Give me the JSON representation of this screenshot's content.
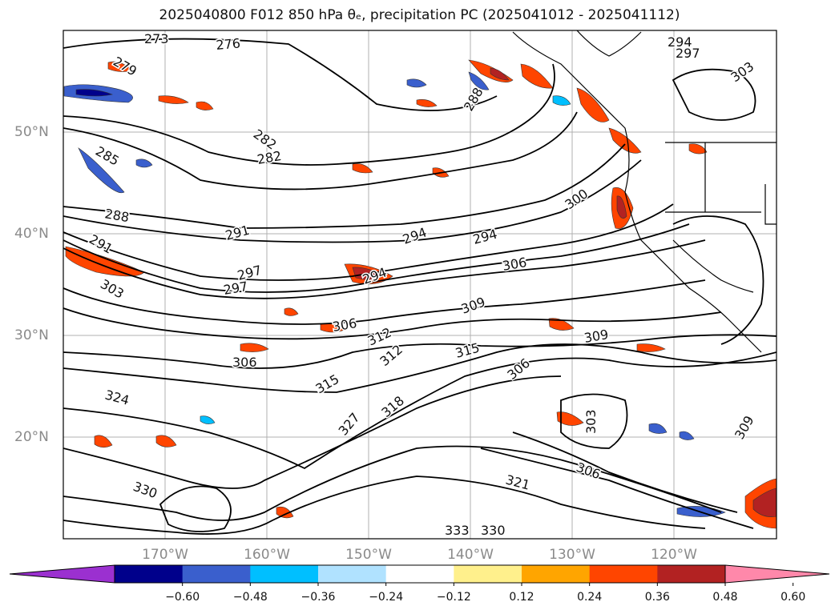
{
  "title": {
    "text": "2025040800 F012 850 hPa θₑ, precipitation PC (2025041012 - 2025041112)"
  },
  "map": {
    "projection": "lat-lon",
    "grid": true,
    "lat_labels": [
      "50°N",
      "40°N",
      "30°N",
      "20°N"
    ],
    "lon_labels": [
      "170°W",
      "160°W",
      "150°W",
      "140°W",
      "130°W",
      "120°W"
    ],
    "contour_labels": [
      "273",
      "276",
      "279",
      "282",
      "282",
      "285",
      "288",
      "288",
      "291",
      "291",
      "294",
      "294",
      "294",
      "297",
      "297",
      "300",
      "303",
      "306",
      "306",
      "306",
      "309",
      "309",
      "312",
      "312",
      "315",
      "315",
      "318",
      "321",
      "324",
      "327",
      "330",
      "330",
      "333",
      "294",
      "297",
      "303",
      "306",
      "303",
      "306",
      "309"
    ],
    "colors": {
      "contour": "#000000",
      "grid": "#b0b0b0",
      "coast": "#000000"
    }
  },
  "colorbar": {
    "tick_labels": [
      "−0.60",
      "−0.48",
      "−0.36",
      "−0.24",
      "−0.12",
      "0.12",
      "0.24",
      "0.36",
      "0.48",
      "0.60"
    ],
    "bin_colors": [
      "#9b30d0",
      "#00008b",
      "#3a5fcd",
      "#00bfff",
      "#b0e2ff",
      "#ffffff",
      "#fff08c",
      "#ffa500",
      "#ff4500",
      "#b22222",
      "#ff88aa"
    ],
    "extend": "both"
  }
}
